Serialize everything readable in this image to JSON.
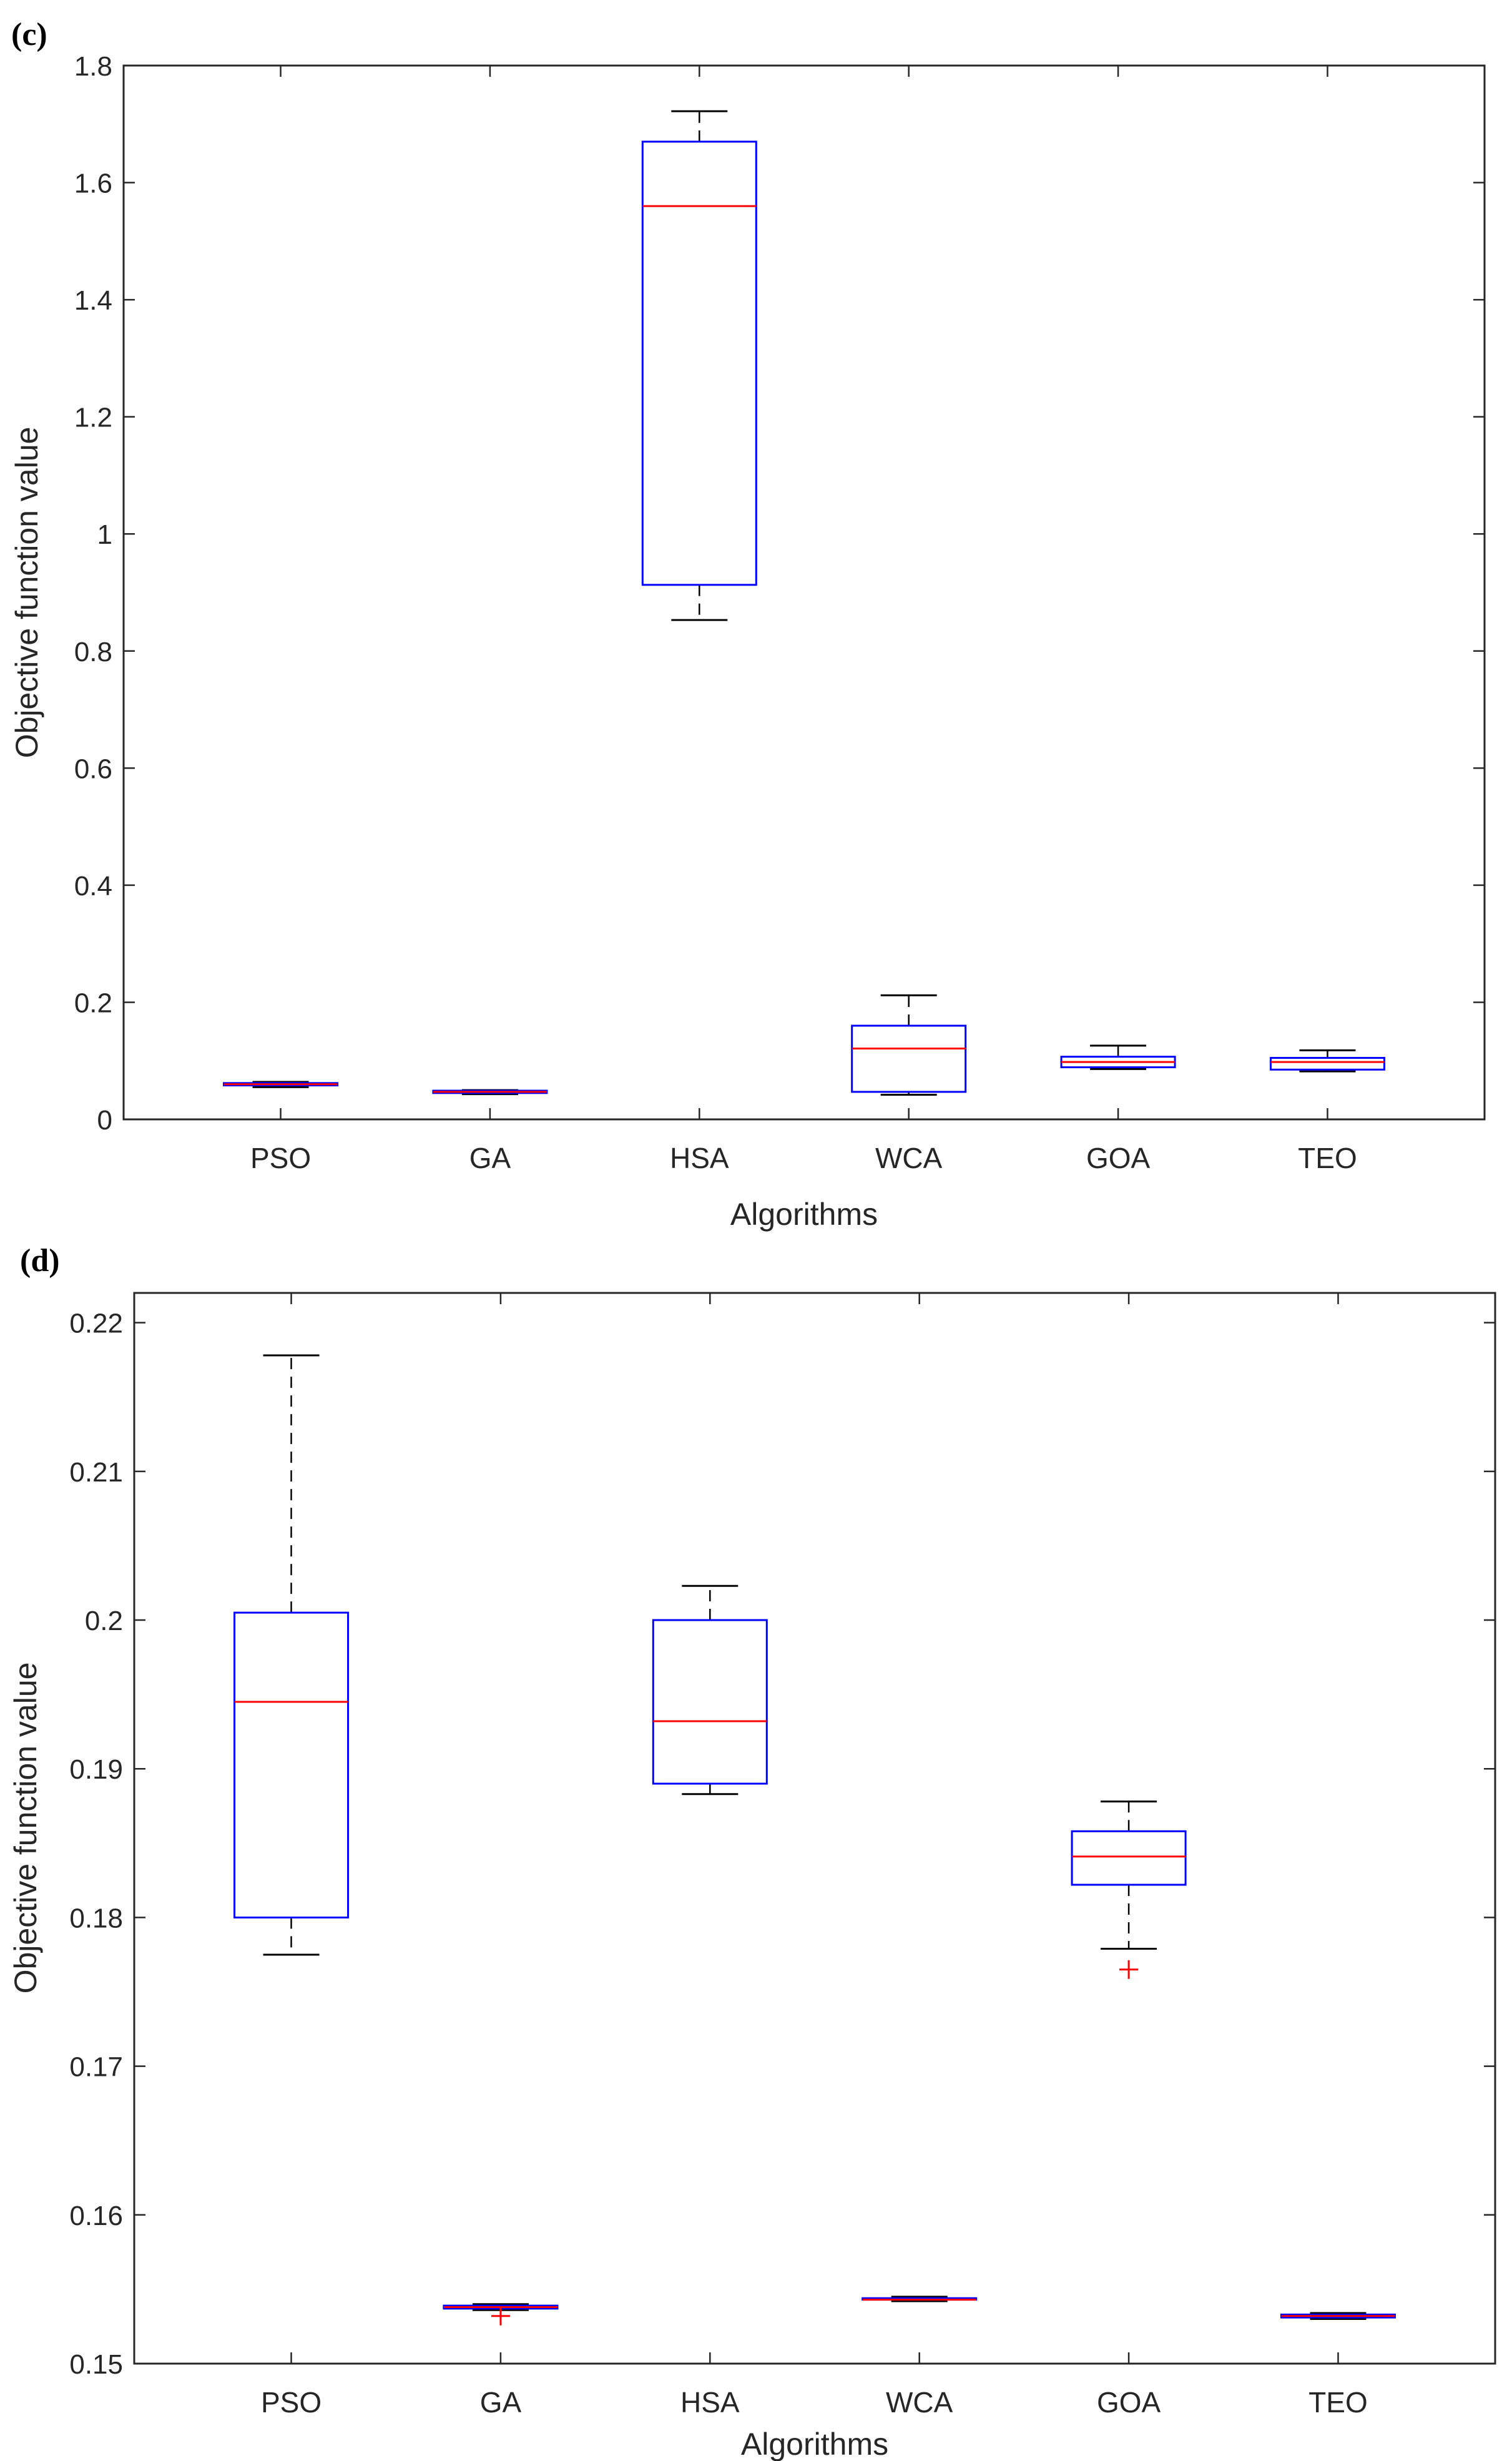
{
  "chart_data": [
    {
      "type": "boxplot",
      "panel_label": "(c)",
      "xlabel": "Algorithms",
      "ylabel": "Objective function value",
      "ylim": [
        0,
        1.8
      ],
      "yticks": [
        "0",
        "0.2",
        "0.4",
        "0.6",
        "0.8",
        "1",
        "1.2",
        "1.4",
        "1.6",
        "1.8"
      ],
      "ytick_values": [
        0,
        0.2,
        0.4,
        0.6,
        0.8,
        1.0,
        1.2,
        1.4,
        1.6,
        1.8
      ],
      "categories": [
        "PSO",
        "GA",
        "HSA",
        "WCA",
        "GOA",
        "TEO"
      ],
      "boxes": [
        {
          "name": "PSO",
          "whisker_low": 0.055,
          "q1": 0.058,
          "median": 0.06,
          "q3": 0.062,
          "whisker_high": 0.064,
          "outliers": []
        },
        {
          "name": "GA",
          "whisker_low": 0.043,
          "q1": 0.045,
          "median": 0.047,
          "q3": 0.049,
          "whisker_high": 0.05,
          "outliers": []
        },
        {
          "name": "HSA",
          "whisker_low": 0.853,
          "q1": 0.913,
          "median": 1.56,
          "q3": 1.67,
          "whisker_high": 1.722,
          "outliers": []
        },
        {
          "name": "WCA",
          "whisker_low": 0.042,
          "q1": 0.047,
          "median": 0.121,
          "q3": 0.16,
          "whisker_high": 0.212,
          "outliers": []
        },
        {
          "name": "GOA",
          "whisker_low": 0.086,
          "q1": 0.089,
          "median": 0.098,
          "q3": 0.107,
          "whisker_high": 0.126,
          "outliers": []
        },
        {
          "name": "TEO",
          "whisker_low": 0.082,
          "q1": 0.085,
          "median": 0.098,
          "q3": 0.105,
          "whisker_high": 0.118,
          "outliers": []
        }
      ],
      "colors": {
        "box": "#0000ff",
        "median": "#ff0000",
        "whisker": "#000000",
        "outlier": "#ff0000"
      }
    },
    {
      "type": "boxplot",
      "panel_label": "(d)",
      "xlabel": "Algorithms",
      "ylabel": "Objective function value",
      "ylim": [
        0.15,
        0.222
      ],
      "yticks": [
        "0.15",
        "0.16",
        "0.17",
        "0.18",
        "0.19",
        "0.2",
        "0.21",
        "0.22"
      ],
      "ytick_values": [
        0.15,
        0.16,
        0.17,
        0.18,
        0.19,
        0.2,
        0.21,
        0.22
      ],
      "categories": [
        "PSO",
        "GA",
        "HSA",
        "WCA",
        "GOA",
        "TEO"
      ],
      "boxes": [
        {
          "name": "PSO",
          "whisker_low": 0.1775,
          "q1": 0.18,
          "median": 0.1945,
          "q3": 0.2005,
          "whisker_high": 0.2178,
          "outliers": []
        },
        {
          "name": "GA",
          "whisker_low": 0.1536,
          "q1": 0.1537,
          "median": 0.1538,
          "q3": 0.1539,
          "whisker_high": 0.154,
          "outliers": [
            0.1532
          ]
        },
        {
          "name": "HSA",
          "whisker_low": 0.1883,
          "q1": 0.189,
          "median": 0.1932,
          "q3": 0.2,
          "whisker_high": 0.2023,
          "outliers": []
        },
        {
          "name": "WCA",
          "whisker_low": 0.1542,
          "q1": 0.1543,
          "median": 0.1543,
          "q3": 0.1544,
          "whisker_high": 0.1545,
          "outliers": []
        },
        {
          "name": "GOA",
          "whisker_low": 0.1779,
          "q1": 0.1822,
          "median": 0.1841,
          "q3": 0.1858,
          "whisker_high": 0.1878,
          "outliers": [
            0.1765
          ]
        },
        {
          "name": "TEO",
          "whisker_low": 0.153,
          "q1": 0.1531,
          "median": 0.1532,
          "q3": 0.1533,
          "whisker_high": 0.1534,
          "outliers": []
        }
      ],
      "colors": {
        "box": "#0000ff",
        "median": "#ff0000",
        "whisker": "#000000",
        "outlier": "#ff0000"
      }
    }
  ]
}
